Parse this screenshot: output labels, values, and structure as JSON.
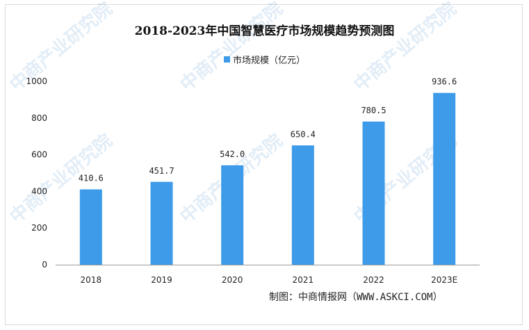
{
  "watermark": "中商产业研究院",
  "source": "制图：中商情报网（WWW.ASKCI.COM）",
  "colors": {
    "bar": "#3d9be9",
    "axis": "#9a9a9a"
  },
  "chart_data": {
    "type": "bar",
    "title": "2018-2023年中国智慧医疗市场规模趋势预测图",
    "legend": {
      "position": "top",
      "entries": [
        "市场规模（亿元）"
      ]
    },
    "categories": [
      "2018",
      "2019",
      "2020",
      "2021",
      "2022",
      "2023E"
    ],
    "series": [
      {
        "name": "市场规模（亿元）",
        "values": [
          410.6,
          451.7,
          542.0,
          650.4,
          780.5,
          936.6
        ]
      }
    ],
    "data_labels": [
      "410.6",
      "451.7",
      "542.0",
      "650.4",
      "780.5",
      "936.6"
    ],
    "yticks": [
      0,
      200,
      400,
      600,
      800,
      1000
    ],
    "ylim": [
      0,
      1000
    ],
    "xlabel": "",
    "ylabel": "",
    "grid": false
  }
}
